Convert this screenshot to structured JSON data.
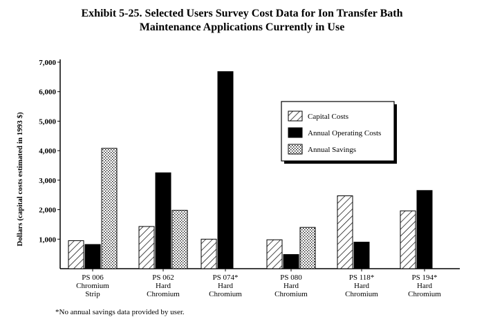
{
  "chart_data": {
    "type": "bar",
    "title_line1": "Exhibit 5-25. Selected Users Survey Cost Data for Ion Transfer Bath",
    "title_line2": "Maintenance Applications Currently in Use",
    "ylabel": "Dollars (capital costs estimated in 1993 $)",
    "ylim": [
      0,
      7000
    ],
    "yticks": [
      "1,000",
      "2,000",
      "3,000",
      "4,000",
      "5,000",
      "6,000",
      "7,000"
    ],
    "categories": [
      [
        "PS 006",
        "Chromium",
        "Strip"
      ],
      [
        "PS 062",
        "Hard",
        "Chromium"
      ],
      [
        "PS 074*",
        "Hard",
        "Chromium"
      ],
      [
        "PS 080",
        "Hard",
        "Chromium"
      ],
      [
        "PS 118*",
        "Hard",
        "Chromium"
      ],
      [
        "PS 194*",
        "Hard",
        "Chromium"
      ]
    ],
    "series": [
      {
        "name": "Capital Costs",
        "pattern": "diagonal",
        "values": [
          950,
          1430,
          1000,
          980,
          2470,
          1960
        ]
      },
      {
        "name": "Annual Operating Costs",
        "pattern": "solid",
        "values": [
          820,
          3250,
          6680,
          480,
          900,
          2650
        ]
      },
      {
        "name": "Annual Savings",
        "pattern": "crosshatch",
        "values": [
          4080,
          1980,
          null,
          1400,
          null,
          null
        ]
      }
    ],
    "legend_position": "right",
    "footnote": "*No annual savings data provided by user."
  }
}
